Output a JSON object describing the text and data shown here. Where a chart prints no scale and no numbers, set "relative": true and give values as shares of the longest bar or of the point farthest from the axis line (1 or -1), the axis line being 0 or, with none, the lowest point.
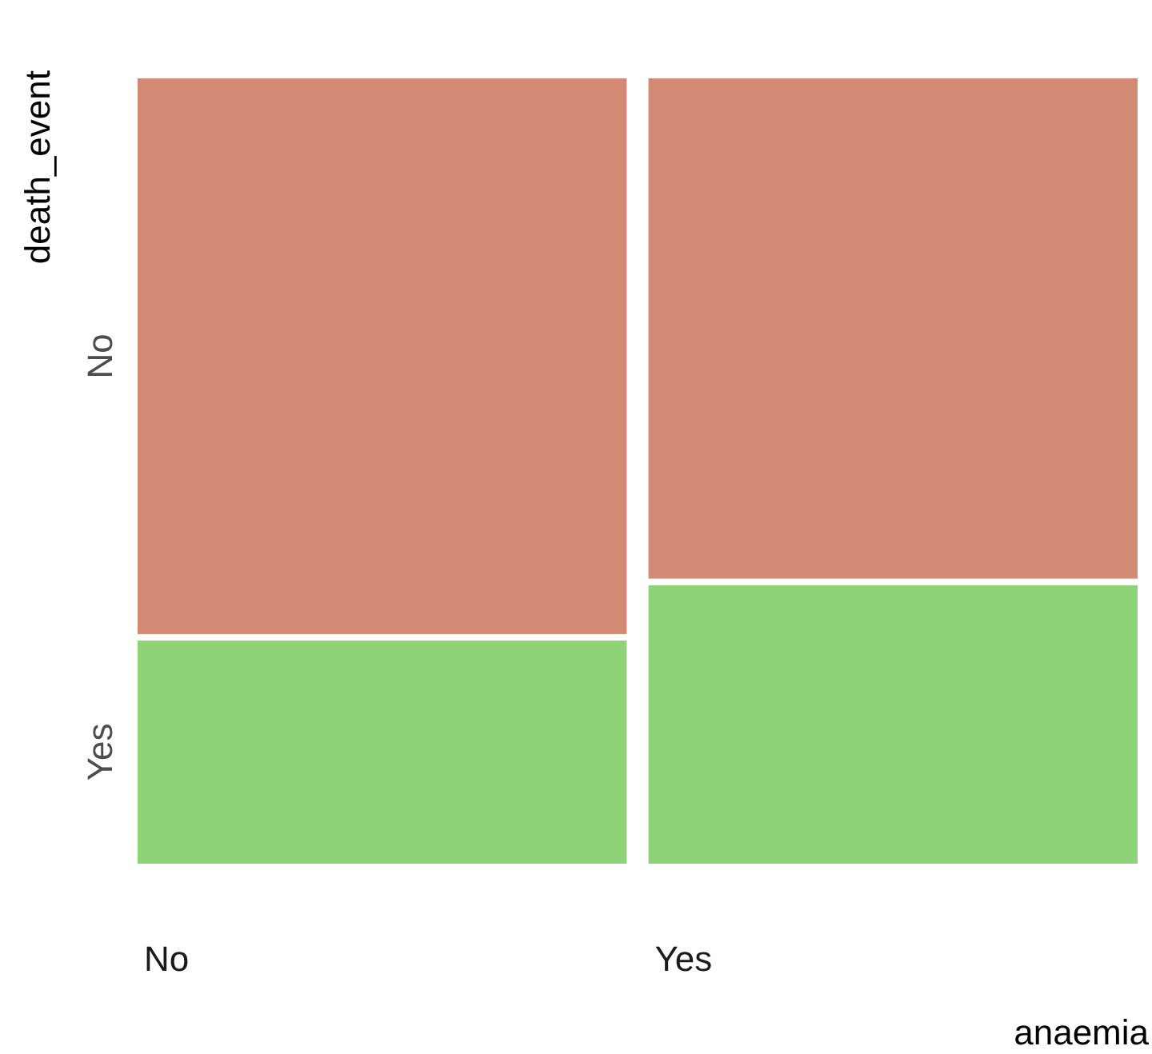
{
  "chart_data": {
    "type": "bar",
    "stacked": true,
    "relative": true,
    "xlabel": "anaemia",
    "ylabel": "death_event",
    "categories": [
      "No",
      "Yes"
    ],
    "series": [
      {
        "name": "Yes",
        "color": "#90d277",
        "values": [
          0.29,
          0.36
        ]
      },
      {
        "name": "No",
        "color": "#d28a75",
        "values": [
          0.71,
          0.64
        ]
      }
    ]
  }
}
